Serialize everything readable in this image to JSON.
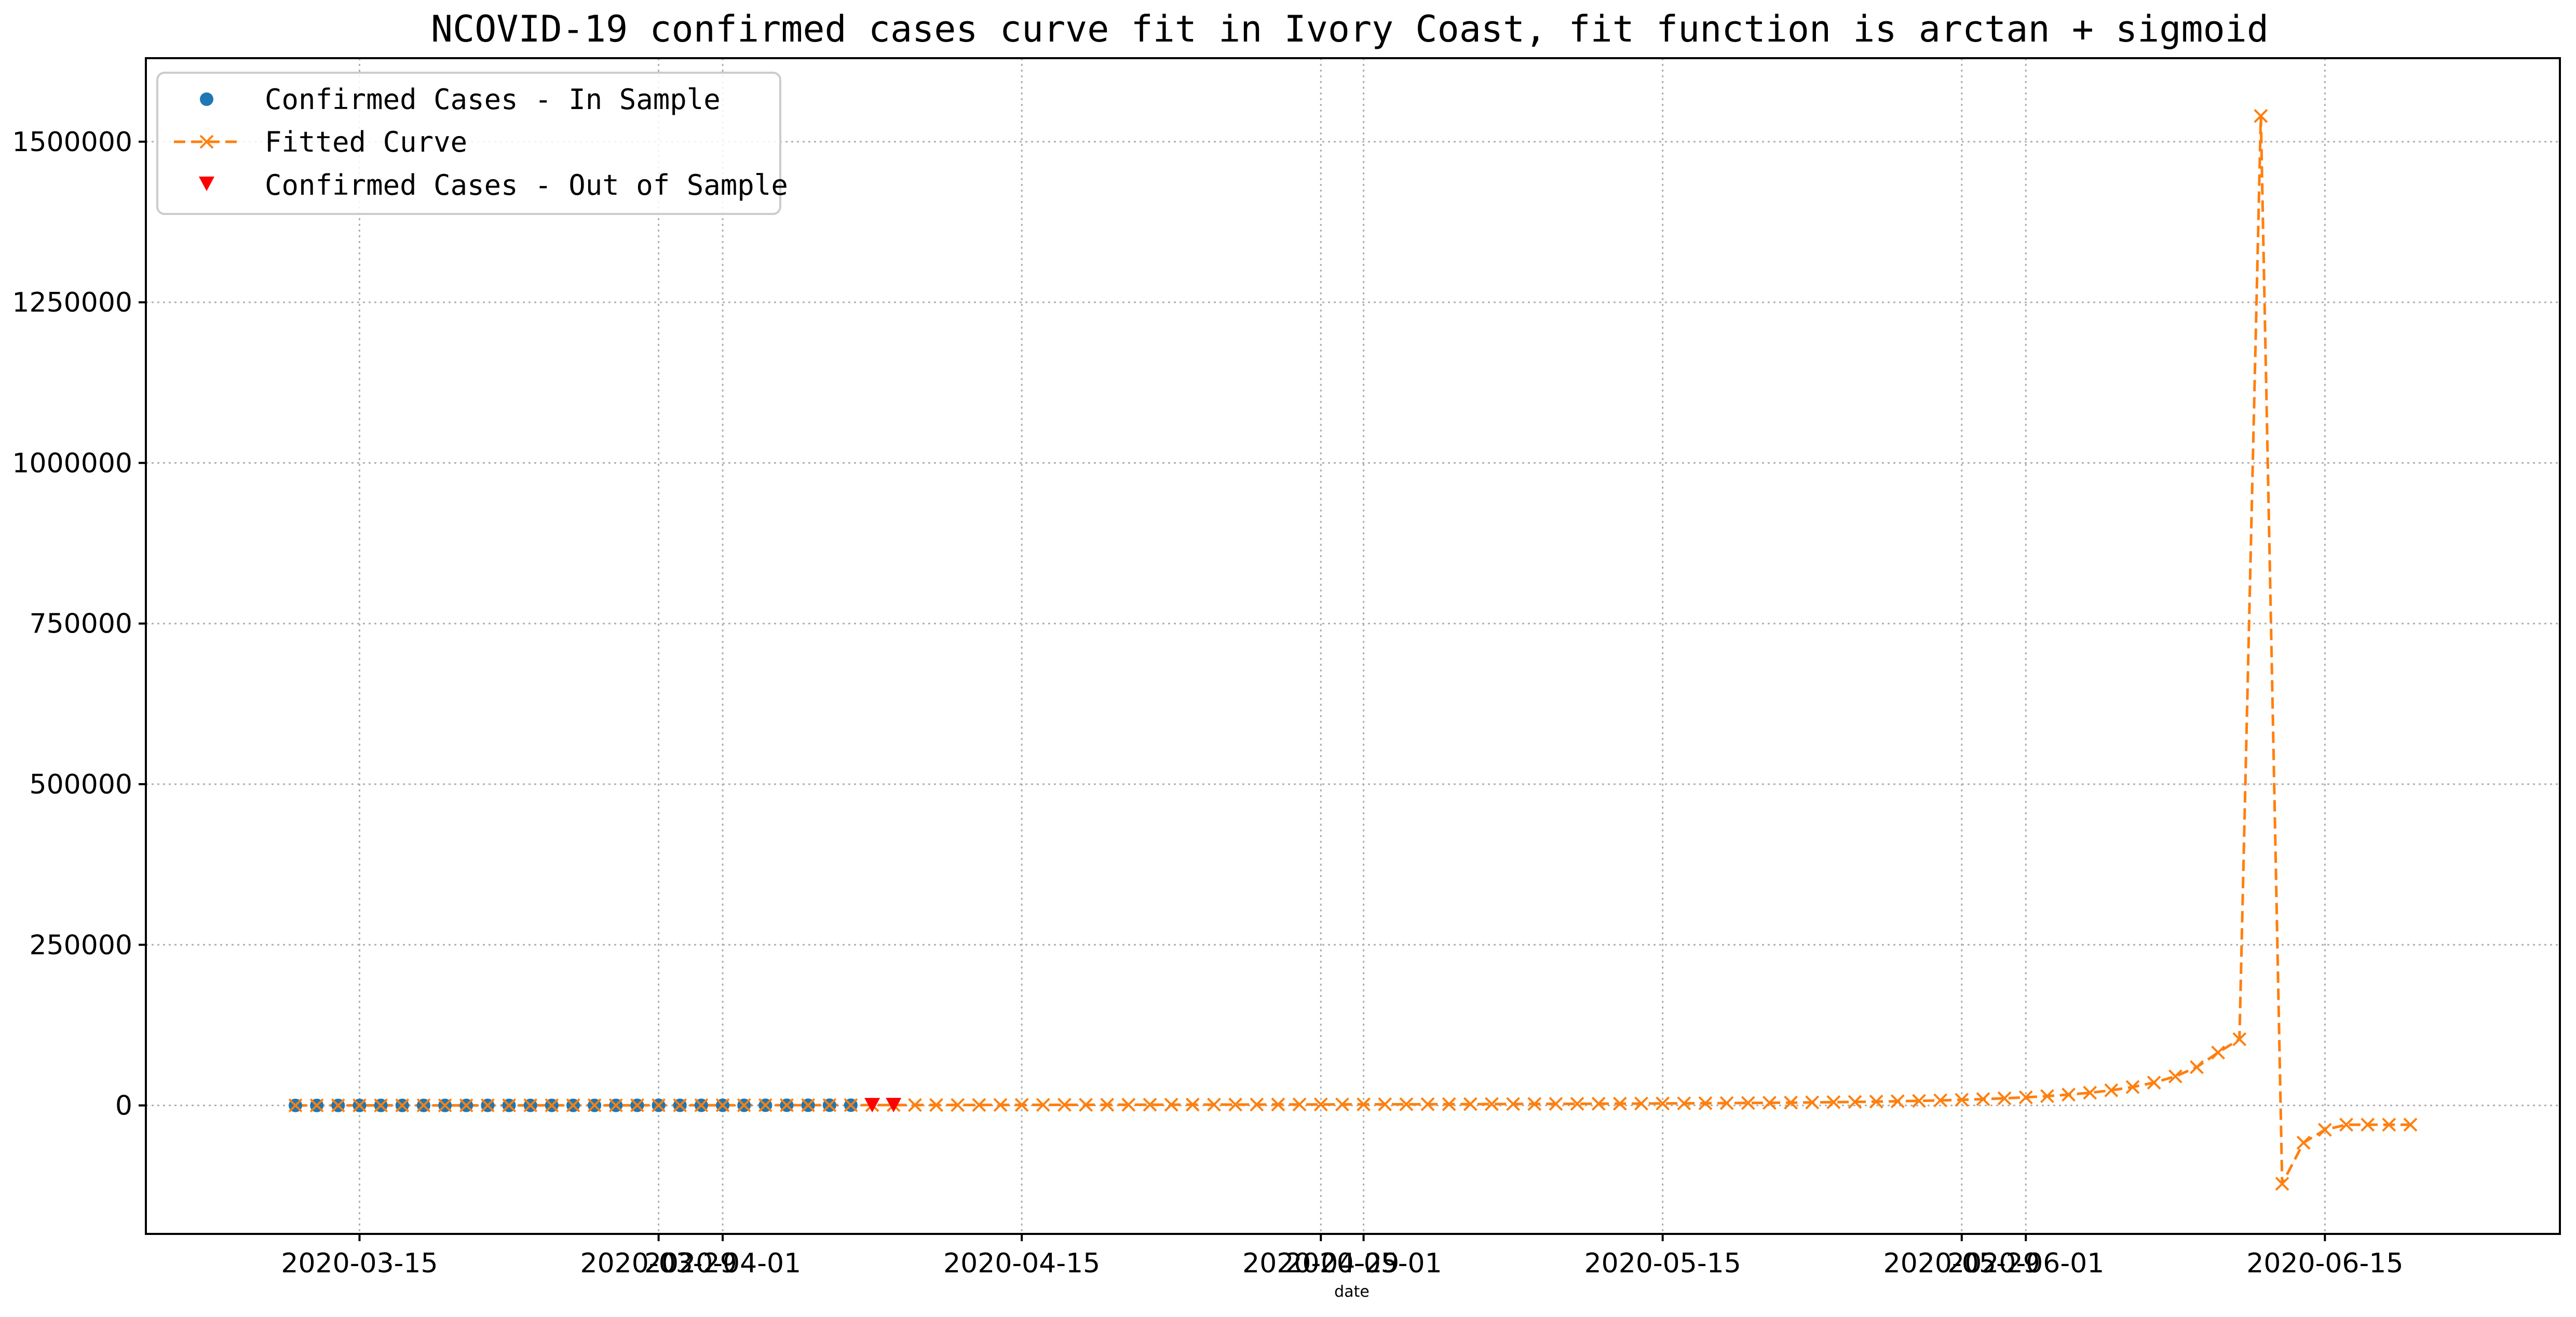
{
  "chart_data": {
    "type": "line",
    "title": "NCOVID-19 confirmed cases curve fit in Ivory Coast, fit function is arctan + sigmoid",
    "xlabel": "date",
    "ylabel": "",
    "ylim": [
      -200000,
      1630000
    ],
    "xlim": [
      "2020-03-05",
      "2020-06-26"
    ],
    "grid": true,
    "legend_position": "top-left",
    "x_ticks": [
      "2020-03-15",
      "2020-03-29",
      "2020-04-01",
      "2020-04-15",
      "2020-04-29",
      "2020-05-01",
      "2020-05-15",
      "2020-05-29",
      "2020-06-01",
      "2020-06-15"
    ],
    "x_tick_labels": [
      "2020-03-15",
      "2020-03-29",
      "2020-04-01",
      "2020-04-15",
      "2020-04-29",
      "2020-05-01",
      "2020-05-15",
      "2020-05-29",
      "2020-06-01",
      "2020-06-15"
    ],
    "y_ticks": [
      0,
      250000,
      500000,
      750000,
      1000000,
      1250000,
      1500000
    ],
    "y_tick_labels": [
      "0",
      "250000",
      "500000",
      "750000",
      "1000000",
      "1250000",
      "1500000"
    ],
    "colors": {
      "in_sample": "#1f77b4",
      "fitted": "#ff7f0e",
      "out_of_sample": "#ff0000"
    },
    "series": [
      {
        "name": "Confirmed Cases - In Sample",
        "style": "markers-circle",
        "color": "#1f77b4",
        "x": [
          "2020-03-12",
          "2020-03-13",
          "2020-03-14",
          "2020-03-15",
          "2020-03-16",
          "2020-03-17",
          "2020-03-18",
          "2020-03-19",
          "2020-03-20",
          "2020-03-21",
          "2020-03-22",
          "2020-03-23",
          "2020-03-24",
          "2020-03-25",
          "2020-03-26",
          "2020-03-27",
          "2020-03-28",
          "2020-03-29",
          "2020-03-30",
          "2020-03-31",
          "2020-04-01",
          "2020-04-02",
          "2020-04-03",
          "2020-04-04",
          "2020-04-05",
          "2020-04-06",
          "2020-04-07"
        ],
        "y": [
          1,
          1,
          1,
          4,
          5,
          6,
          9,
          9,
          14,
          25,
          25,
          73,
          80,
          96,
          101,
          101,
          140,
          165,
          168,
          179,
          190,
          194,
          218,
          245,
          261,
          323,
          349
        ]
      },
      {
        "name": "Fitted Curve",
        "style": "dashed-line-x-markers",
        "color": "#ff7f0e",
        "x": [
          "2020-03-12",
          "2020-03-13",
          "2020-03-14",
          "2020-03-15",
          "2020-03-16",
          "2020-03-17",
          "2020-03-18",
          "2020-03-19",
          "2020-03-20",
          "2020-03-21",
          "2020-03-22",
          "2020-03-23",
          "2020-03-24",
          "2020-03-25",
          "2020-03-26",
          "2020-03-27",
          "2020-03-28",
          "2020-03-29",
          "2020-03-30",
          "2020-03-31",
          "2020-04-01",
          "2020-04-02",
          "2020-04-03",
          "2020-04-04",
          "2020-04-05",
          "2020-04-06",
          "2020-04-07",
          "2020-04-08",
          "2020-04-09",
          "2020-04-10",
          "2020-04-11",
          "2020-04-12",
          "2020-04-13",
          "2020-04-14",
          "2020-04-15",
          "2020-04-16",
          "2020-04-17",
          "2020-04-18",
          "2020-04-19",
          "2020-04-20",
          "2020-04-21",
          "2020-04-22",
          "2020-04-23",
          "2020-04-24",
          "2020-04-25",
          "2020-04-26",
          "2020-04-27",
          "2020-04-28",
          "2020-04-29",
          "2020-04-30",
          "2020-05-01",
          "2020-05-02",
          "2020-05-03",
          "2020-05-04",
          "2020-05-05",
          "2020-05-06",
          "2020-05-07",
          "2020-05-08",
          "2020-05-09",
          "2020-05-10",
          "2020-05-11",
          "2020-05-12",
          "2020-05-13",
          "2020-05-14",
          "2020-05-15",
          "2020-05-16",
          "2020-05-17",
          "2020-05-18",
          "2020-05-19",
          "2020-05-20",
          "2020-05-21",
          "2020-05-22",
          "2020-05-23",
          "2020-05-24",
          "2020-05-25",
          "2020-05-26",
          "2020-05-27",
          "2020-05-28",
          "2020-05-29",
          "2020-05-30",
          "2020-05-31",
          "2020-06-01",
          "2020-06-02",
          "2020-06-03",
          "2020-06-04",
          "2020-06-05",
          "2020-06-06",
          "2020-06-07",
          "2020-06-08",
          "2020-06-09",
          "2020-06-10",
          "2020-06-11",
          "2020-06-12",
          "2020-06-13",
          "2020-06-14",
          "2020-06-15",
          "2020-06-16",
          "2020-06-17",
          "2020-06-18",
          "2020-06-19"
        ],
        "y": [
          0,
          5,
          12,
          20,
          28,
          36,
          45,
          54,
          64,
          75,
          87,
          100,
          114,
          130,
          147,
          166,
          186,
          208,
          232,
          257,
          284,
          312,
          342,
          374,
          407,
          441,
          477,
          514,
          552,
          591,
          631,
          672,
          714,
          757,
          801,
          846,
          892,
          939,
          987,
          1036,
          1086,
          1137,
          1189,
          1242,
          1296,
          1351,
          1408,
          1466,
          1526,
          1588,
          1652,
          1719,
          1788,
          1860,
          1936,
          2016,
          2100,
          2190,
          2286,
          2388,
          2498,
          2616,
          2744,
          2883,
          3035,
          3201,
          3384,
          3587,
          3812,
          4064,
          4347,
          4666,
          5028,
          5441,
          5915,
          6463,
          7101,
          7848,
          8730,
          9779,
          11039,
          12568,
          14442,
          16773,
          19721,
          23530,
          28572,
          35449,
          45172,
          59524,
          82228,
          103000,
          1540000,
          -122000,
          -58000,
          -38000,
          -30000,
          -30000,
          -30000,
          -30000
        ]
      },
      {
        "name": "Confirmed Cases - Out of Sample",
        "style": "markers-triangle-down",
        "color": "#ff0000",
        "x": [
          "2020-04-08",
          "2020-04-09"
        ],
        "y": [
          384,
          444
        ]
      }
    ]
  }
}
